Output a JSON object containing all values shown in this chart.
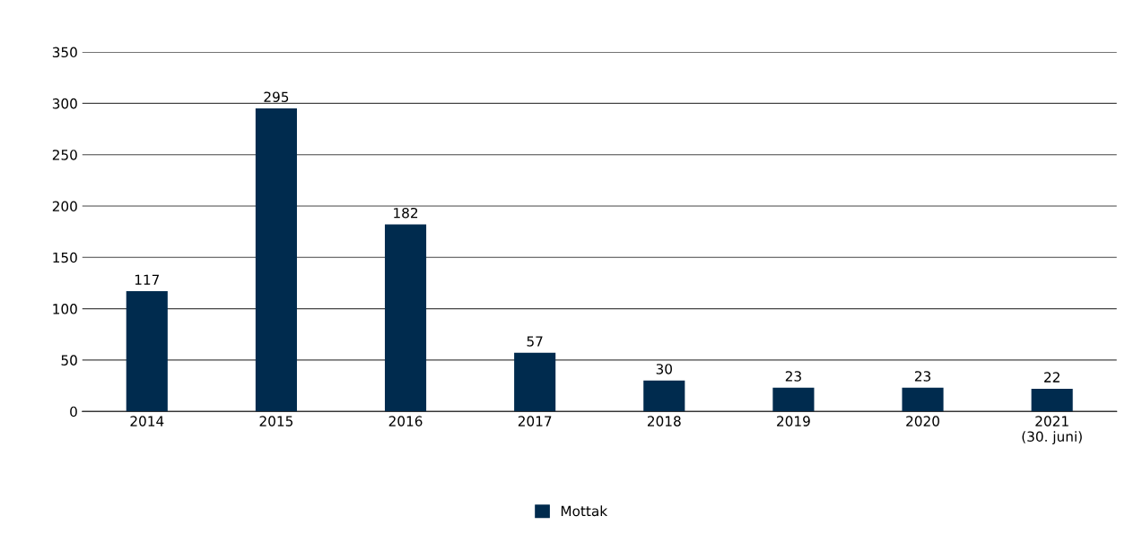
{
  "chart_data": {
    "type": "bar",
    "categories": [
      "2014",
      "2015",
      "2016",
      "2017",
      "2018",
      "2019",
      "2020",
      "2021\n(30. juni)"
    ],
    "series": [
      {
        "name": "Mottak",
        "color": "#002b4e",
        "values": [
          117,
          295,
          182,
          57,
          30,
          23,
          23,
          22
        ]
      }
    ],
    "ylim": [
      0,
      350
    ],
    "yticks": [
      0,
      50,
      100,
      150,
      200,
      250,
      300,
      350
    ],
    "grid": "y",
    "legend": "bottom",
    "data_labels": true
  }
}
